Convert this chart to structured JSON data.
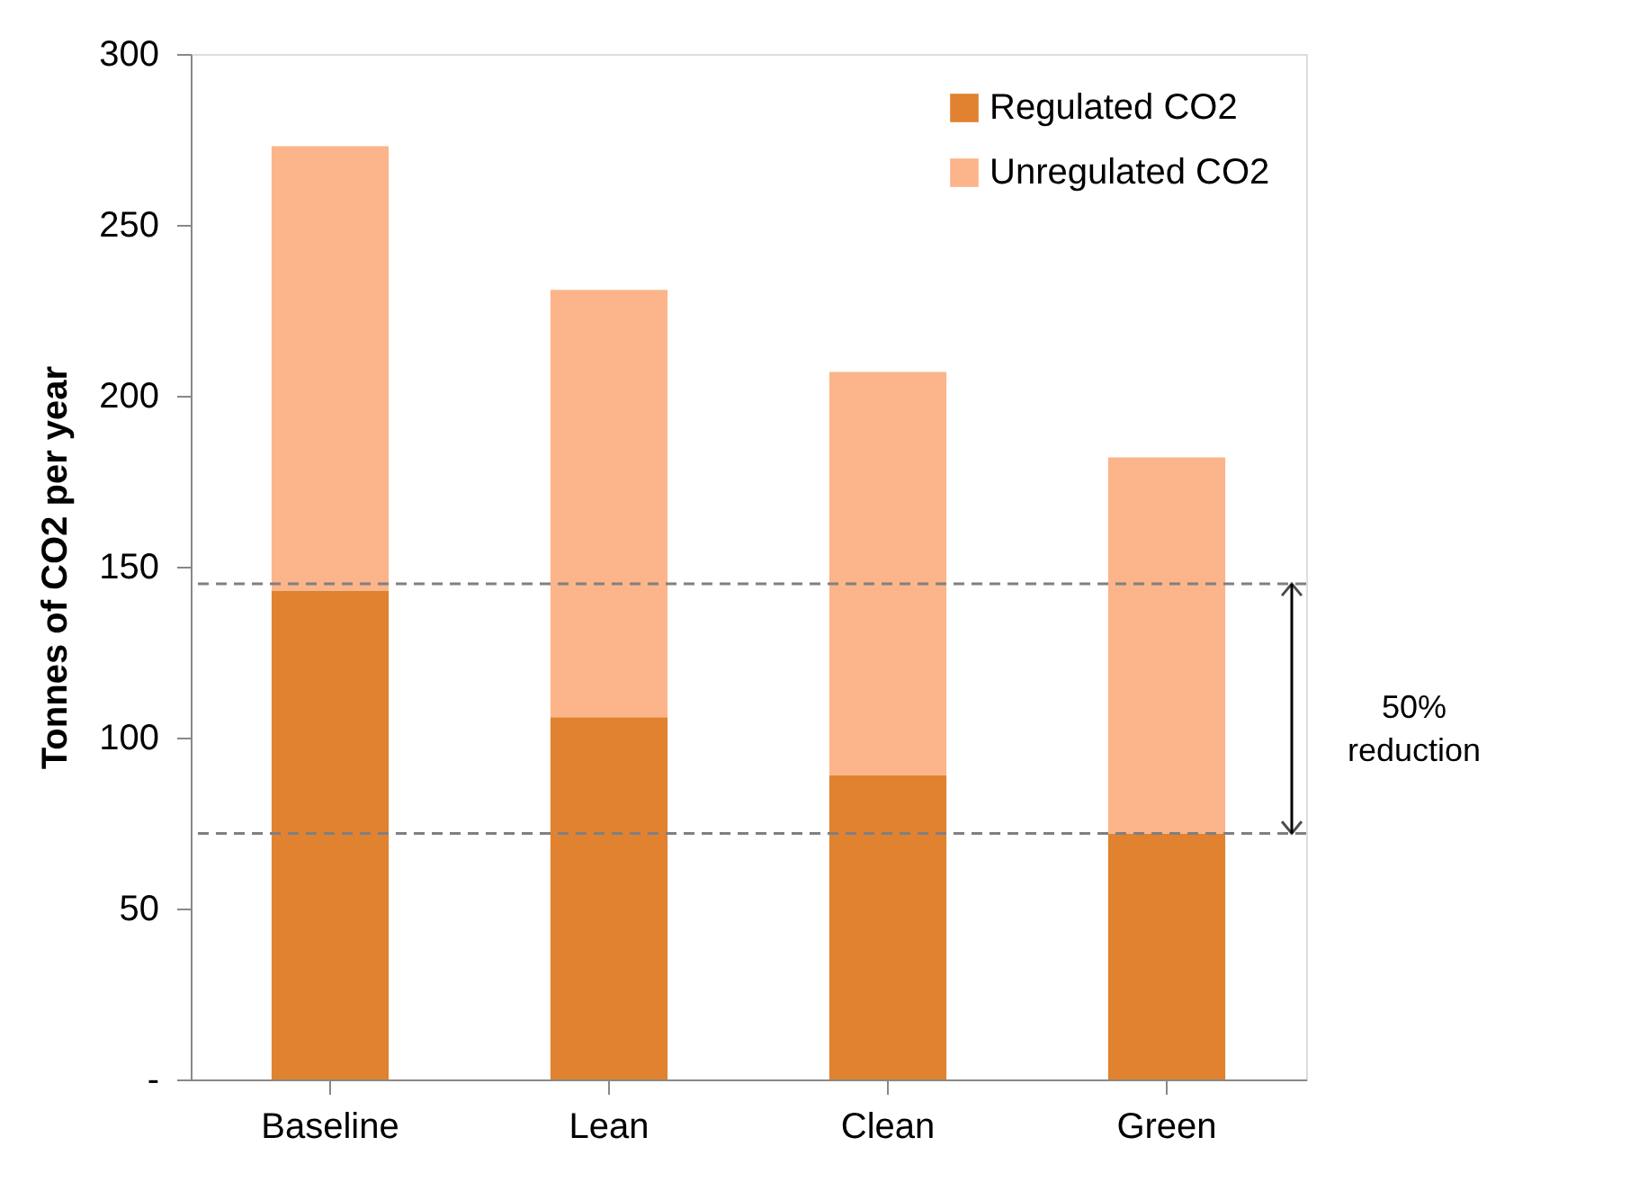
{
  "chart_data": {
    "type": "bar",
    "stacked": true,
    "ylabel": "Tonnes of CO2 per year",
    "categories": [
      "Baseline",
      "Lean",
      "Clean",
      "Green"
    ],
    "series": [
      {
        "name": "Regulated CO2",
        "color": "#e0822f",
        "values": [
          143,
          106,
          89,
          72
        ]
      },
      {
        "name": "Unregulated CO2",
        "color": "#fcb48a",
        "values": [
          130,
          125,
          118,
          110
        ]
      }
    ],
    "ylim": [
      0,
      300
    ],
    "yticks": [
      {
        "value": 0,
        "label": "-"
      },
      50,
      100,
      150,
      200,
      250,
      300
    ],
    "ref_lines": [
      {
        "axis": "y",
        "value": 145,
        "label": null,
        "color": "#808080",
        "line_style": "dashed"
      },
      {
        "axis": "y",
        "value": 72,
        "label": null,
        "color": "#808080",
        "line_style": "dashed"
      }
    ],
    "annotations": [
      "50% reduction"
    ],
    "grid": false,
    "legend": "top right"
  }
}
